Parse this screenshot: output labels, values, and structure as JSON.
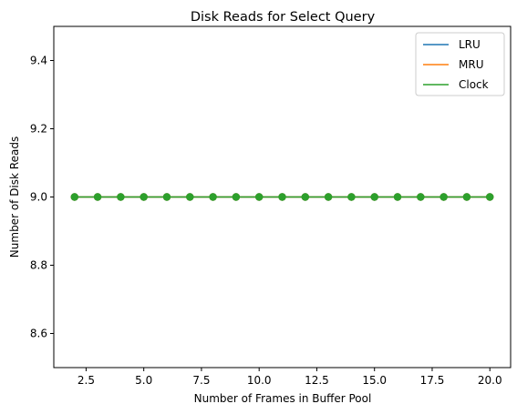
{
  "chart_data": {
    "type": "line",
    "title": "Disk Reads for Select Query",
    "xlabel": "Number of Frames in Buffer Pool",
    "ylabel": "Number of Disk Reads",
    "xlim": [
      1.1,
      20.9
    ],
    "ylim": [
      8.5,
      9.5
    ],
    "xticks": [
      2.5,
      5.0,
      7.5,
      10.0,
      12.5,
      15.0,
      17.5,
      20.0
    ],
    "xtick_labels": [
      "2.5",
      "5.0",
      "7.5",
      "10.0",
      "12.5",
      "15.0",
      "17.5",
      "20.0"
    ],
    "yticks": [
      8.6,
      8.8,
      9.0,
      9.2,
      9.4
    ],
    "ytick_labels": [
      "8.6",
      "8.8",
      "9.0",
      "9.2",
      "9.4"
    ],
    "grid": false,
    "legend_position": "top-right",
    "x": [
      2,
      3,
      4,
      5,
      6,
      7,
      8,
      9,
      10,
      11,
      12,
      13,
      14,
      15,
      16,
      17,
      18,
      19,
      20
    ],
    "series": [
      {
        "name": "LRU",
        "color": "#1f77b4",
        "values": [
          9,
          9,
          9,
          9,
          9,
          9,
          9,
          9,
          9,
          9,
          9,
          9,
          9,
          9,
          9,
          9,
          9,
          9,
          9
        ]
      },
      {
        "name": "MRU",
        "color": "#ff7f0e",
        "values": [
          9,
          9,
          9,
          9,
          9,
          9,
          9,
          9,
          9,
          9,
          9,
          9,
          9,
          9,
          9,
          9,
          9,
          9,
          9
        ]
      },
      {
        "name": "Clock",
        "color": "#2ca02c",
        "values": [
          9,
          9,
          9,
          9,
          9,
          9,
          9,
          9,
          9,
          9,
          9,
          9,
          9,
          9,
          9,
          9,
          9,
          9,
          9
        ]
      }
    ]
  }
}
